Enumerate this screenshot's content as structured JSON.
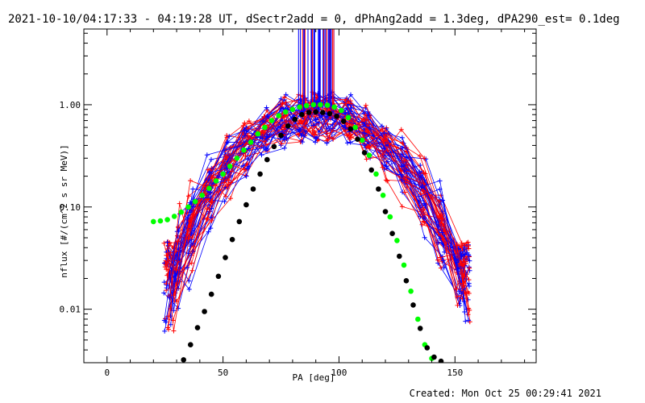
{
  "header": {
    "title": "2021-10-10/04:17:33 - 04:19:28 UT, dSectr2add = 0, dPhAng2add = 1.3deg, dPA290_est=  0.1deg"
  },
  "footer": {
    "created": "Created: Mon Oct 25 00:29:41 2021"
  },
  "chart_data": {
    "type": "line",
    "xlabel": "PA [deg]",
    "ylabel": "nflux [#/(cm^2 s sr MeV)]",
    "xlim": [
      -10,
      185
    ],
    "ylim": [
      0.003,
      5.5
    ],
    "yscale": "log",
    "xticks": [
      0,
      50,
      100,
      150
    ],
    "xtick_labels": [
      "0",
      "50",
      "100",
      "150"
    ],
    "yticks": [
      0.01,
      0.1,
      1.0
    ],
    "ytick_labels": [
      "0.01",
      "0.10",
      "1.00"
    ],
    "grid": false,
    "colors": {
      "blue": "#0000ff",
      "red": "#ff0000",
      "green": "#00ff00",
      "black": "#000000"
    },
    "series": [
      {
        "color": "#00ff00",
        "marker": "filled-circle",
        "line": false,
        "x": [
          20,
          23,
          26,
          29,
          32,
          35,
          38,
          41,
          44,
          47,
          50,
          53,
          56,
          59,
          62,
          65,
          68,
          71,
          74,
          77,
          80,
          83,
          86,
          89,
          92,
          95,
          98,
          101,
          104,
          107,
          110,
          113,
          116,
          119,
          122,
          125,
          128,
          131,
          134,
          137,
          140
        ],
        "y": [
          0.072,
          0.073,
          0.075,
          0.081,
          0.089,
          0.1,
          0.113,
          0.13,
          0.152,
          0.18,
          0.21,
          0.25,
          0.3,
          0.36,
          0.43,
          0.52,
          0.6,
          0.7,
          0.78,
          0.85,
          0.9,
          0.95,
          0.98,
          1.0,
          1.0,
          0.99,
          0.95,
          0.88,
          0.75,
          0.6,
          0.45,
          0.32,
          0.21,
          0.13,
          0.08,
          0.047,
          0.027,
          0.015,
          0.008,
          0.0045,
          0.0033
        ]
      },
      {
        "color": "#000000",
        "marker": "filled-circle",
        "line": false,
        "x": [
          33,
          36,
          39,
          42,
          45,
          48,
          51,
          54,
          57,
          60,
          63,
          66,
          69,
          72,
          75,
          78,
          81,
          84,
          87,
          90,
          93,
          96,
          99,
          102,
          105,
          108,
          111,
          114,
          117,
          120,
          123,
          126,
          129,
          132,
          135,
          138,
          141,
          144
        ],
        "y": [
          0.0032,
          0.0045,
          0.0066,
          0.0095,
          0.014,
          0.021,
          0.032,
          0.048,
          0.072,
          0.105,
          0.15,
          0.21,
          0.29,
          0.39,
          0.5,
          0.62,
          0.72,
          0.8,
          0.84,
          0.85,
          0.84,
          0.82,
          0.77,
          0.69,
          0.58,
          0.46,
          0.34,
          0.23,
          0.15,
          0.09,
          0.055,
          0.033,
          0.019,
          0.011,
          0.0065,
          0.0042,
          0.0034,
          0.0031
        ]
      }
    ]
  }
}
